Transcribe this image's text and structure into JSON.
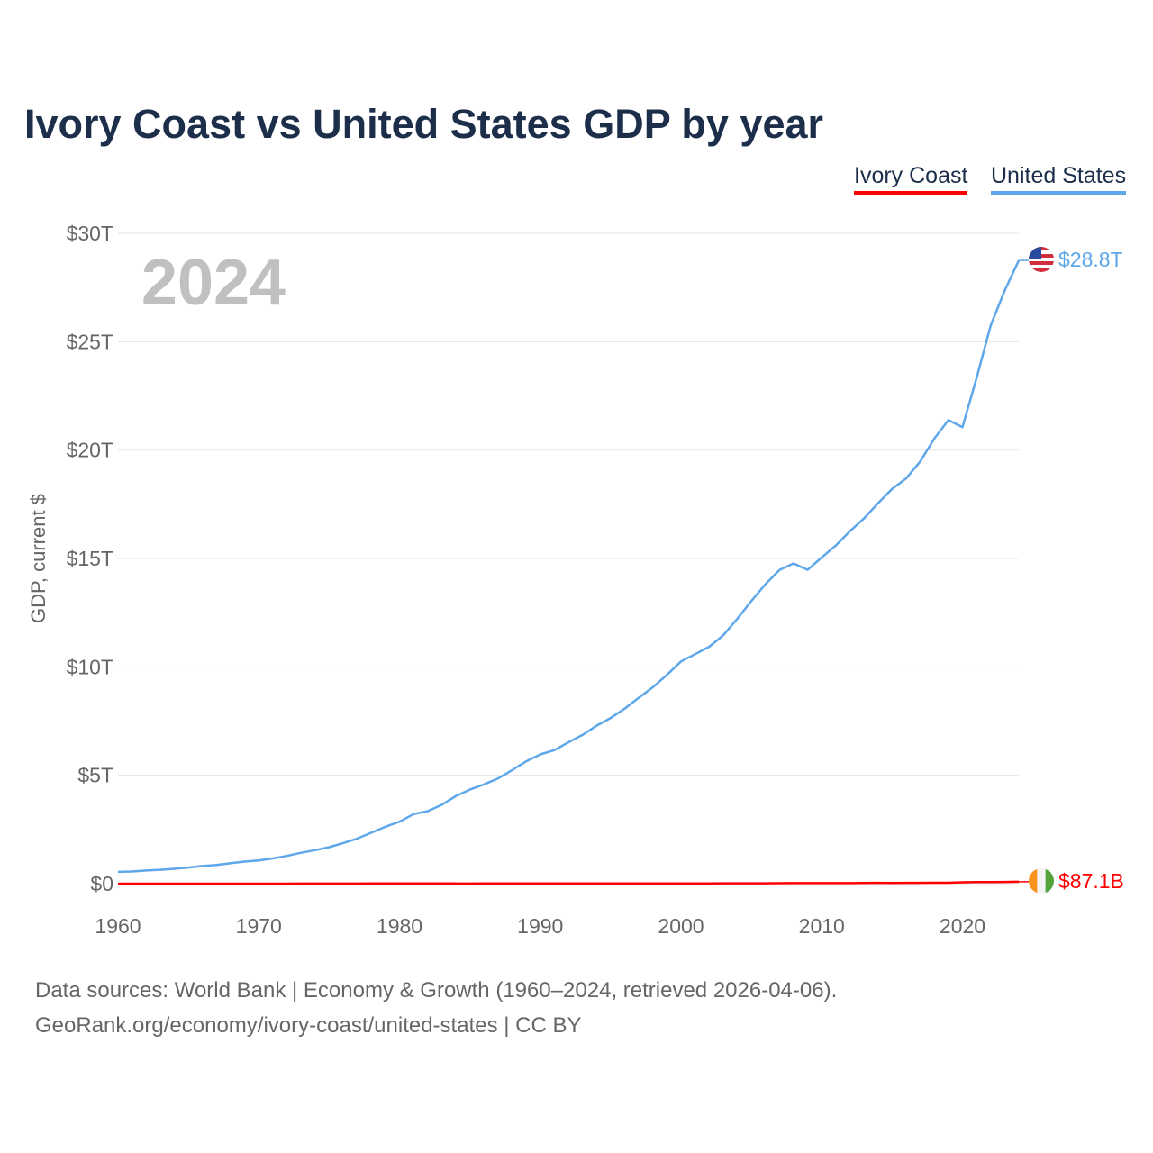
{
  "chart_data": {
    "type": "line",
    "title": "Ivory Coast vs United States GDP by year",
    "ylabel": "GDP, current $",
    "xlabel": "",
    "year_label": "2024",
    "xlim": [
      1960,
      2024
    ],
    "ylim": [
      0,
      30
    ],
    "y_unit": "trillion USD",
    "grid": true,
    "legend_placement": "top-right",
    "x_ticks": [
      1960,
      1970,
      1980,
      1990,
      2000,
      2010,
      2020
    ],
    "x_tick_labels": [
      "1960",
      "1970",
      "1980",
      "1990",
      "2000",
      "2010",
      "2020"
    ],
    "y_ticks": [
      0,
      5,
      10,
      15,
      20,
      25,
      30
    ],
    "y_tick_labels": [
      "$0",
      "$5T",
      "$10T",
      "$15T",
      "$20T",
      "$25T",
      "$30T"
    ],
    "x": [
      1960,
      1961,
      1962,
      1963,
      1964,
      1965,
      1966,
      1967,
      1968,
      1969,
      1970,
      1971,
      1972,
      1973,
      1974,
      1975,
      1976,
      1977,
      1978,
      1979,
      1980,
      1981,
      1982,
      1983,
      1984,
      1985,
      1986,
      1987,
      1988,
      1989,
      1990,
      1991,
      1992,
      1993,
      1994,
      1995,
      1996,
      1997,
      1998,
      1999,
      2000,
      2001,
      2002,
      2003,
      2004,
      2005,
      2006,
      2007,
      2008,
      2009,
      2010,
      2011,
      2012,
      2013,
      2014,
      2015,
      2016,
      2017,
      2018,
      2019,
      2020,
      2021,
      2022,
      2023,
      2024
    ],
    "series": [
      {
        "name": "Ivory Coast",
        "color": "#ff0000",
        "end_label": "$87.1B",
        "flag": "ivory-coast",
        "values": [
          0.00055,
          0.00062,
          0.00065,
          0.00075,
          0.00094,
          0.00092,
          0.001,
          0.00105,
          0.0012,
          0.0014,
          0.0015,
          0.0016,
          0.0018,
          0.0024,
          0.0031,
          0.0036,
          0.0046,
          0.0061,
          0.0074,
          0.0088,
          0.0102,
          0.0084,
          0.0073,
          0.0068,
          0.0066,
          0.0059,
          0.008,
          0.0088,
          0.0093,
          0.0086,
          0.0108,
          0.0105,
          0.0112,
          0.011,
          0.0083,
          0.011,
          0.0119,
          0.0117,
          0.0129,
          0.0126,
          0.0107,
          0.0108,
          0.0119,
          0.0146,
          0.0164,
          0.0171,
          0.0178,
          0.0203,
          0.0242,
          0.0244,
          0.0249,
          0.0254,
          0.027,
          0.0313,
          0.0354,
          0.0331,
          0.0354,
          0.0381,
          0.043,
          0.0429,
          0.0613,
          0.07,
          0.0702,
          0.0788,
          0.0871
        ]
      },
      {
        "name": "United States",
        "color": "#5ea7ea",
        "end_label": "$28.8T",
        "flag": "united-states",
        "values": [
          0.543,
          0.563,
          0.605,
          0.638,
          0.686,
          0.744,
          0.815,
          0.862,
          0.943,
          1.019,
          1.073,
          1.165,
          1.28,
          1.425,
          1.545,
          1.684,
          1.873,
          2.082,
          2.352,
          2.627,
          2.857,
          3.207,
          3.343,
          3.634,
          4.037,
          4.339,
          4.58,
          4.855,
          5.236,
          5.642,
          5.963,
          6.158,
          6.52,
          6.859,
          7.287,
          7.64,
          8.073,
          8.578,
          9.063,
          9.631,
          10.251,
          10.582,
          10.929,
          11.457,
          12.217,
          13.039,
          13.816,
          14.474,
          14.77,
          14.478,
          15.049,
          15.6,
          16.254,
          16.843,
          17.551,
          18.206,
          18.695,
          19.477,
          20.533,
          21.381,
          21.06,
          23.315,
          25.744,
          27.361,
          28.751
        ]
      }
    ]
  },
  "footer": {
    "line1": "Data sources: World Bank | Economy & Growth (1960–2024, retrieved 2026-04-06).",
    "line2": "GeoRank.org/economy/ivory-coast/united-states | CC BY"
  }
}
